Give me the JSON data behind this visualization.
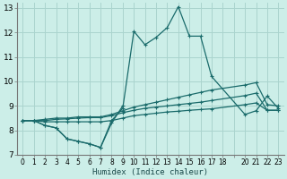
{
  "xlabel": "Humidex (Indice chaleur)",
  "background_color": "#cceee8",
  "grid_color": "#aad4ce",
  "line_color": "#1a6b6b",
  "xlim": [
    -0.5,
    23.5
  ],
  "ylim": [
    7,
    13.2
  ],
  "yticks": [
    7,
    8,
    9,
    10,
    11,
    12,
    13
  ],
  "xtick_labels": [
    "0",
    "1",
    "2",
    "3",
    "4",
    "5",
    "6",
    "7",
    "8",
    "9",
    "10",
    "11",
    "12",
    "13",
    "14",
    "15",
    "16",
    "17",
    "18",
    "",
    "20",
    "21",
    "22",
    "23"
  ],
  "xtick_positions": [
    0,
    1,
    2,
    3,
    4,
    5,
    6,
    7,
    8,
    9,
    10,
    11,
    12,
    13,
    14,
    15,
    16,
    17,
    18,
    19,
    20,
    21,
    22,
    23
  ],
  "series": [
    {
      "x": [
        0,
        1,
        2,
        3,
        4,
        5,
        6,
        7,
        8,
        9,
        10,
        11,
        12,
        13,
        14,
        15,
        16,
        17,
        20,
        21,
        22,
        23
      ],
      "y": [
        8.4,
        8.4,
        8.2,
        8.1,
        7.65,
        7.55,
        7.45,
        7.3,
        8.4,
        8.9,
        12.05,
        11.5,
        11.8,
        12.2,
        13.05,
        11.85,
        11.85,
        10.2,
        8.65,
        8.8,
        9.4,
        8.9
      ]
    },
    {
      "x": [
        0,
        1,
        2,
        3,
        4,
        5,
        6,
        7,
        8,
        9
      ],
      "y": [
        8.4,
        8.4,
        8.2,
        8.1,
        7.65,
        7.55,
        7.45,
        7.3,
        8.3,
        9.0
      ]
    },
    {
      "x": [
        0,
        1,
        2,
        3,
        4,
        5,
        6,
        7,
        8,
        9,
        10,
        11,
        12,
        13,
        14,
        15,
        16,
        17,
        20,
        21,
        22,
        23
      ],
      "y": [
        8.4,
        8.4,
        8.45,
        8.5,
        8.5,
        8.55,
        8.55,
        8.55,
        8.65,
        8.8,
        8.95,
        9.05,
        9.15,
        9.25,
        9.35,
        9.45,
        9.55,
        9.65,
        9.85,
        9.95,
        9.05,
        9.0
      ]
    },
    {
      "x": [
        0,
        1,
        2,
        3,
        4,
        5,
        6,
        7,
        8,
        9,
        10,
        11,
        12,
        13,
        14,
        15,
        16,
        17,
        20,
        21,
        22,
        23
      ],
      "y": [
        8.4,
        8.4,
        8.4,
        8.45,
        8.47,
        8.5,
        8.52,
        8.52,
        8.6,
        8.72,
        8.82,
        8.9,
        8.95,
        9.0,
        9.05,
        9.1,
        9.15,
        9.22,
        9.42,
        9.52,
        8.82,
        8.82
      ]
    },
    {
      "x": [
        0,
        1,
        2,
        3,
        4,
        5,
        6,
        7,
        8,
        9,
        10,
        11,
        12,
        13,
        14,
        15,
        16,
        17,
        20,
        21,
        22,
        23
      ],
      "y": [
        8.4,
        8.4,
        8.35,
        8.35,
        8.35,
        8.35,
        8.35,
        8.35,
        8.4,
        8.5,
        8.6,
        8.65,
        8.7,
        8.75,
        8.78,
        8.82,
        8.85,
        8.88,
        9.05,
        9.12,
        8.82,
        8.82
      ]
    }
  ]
}
